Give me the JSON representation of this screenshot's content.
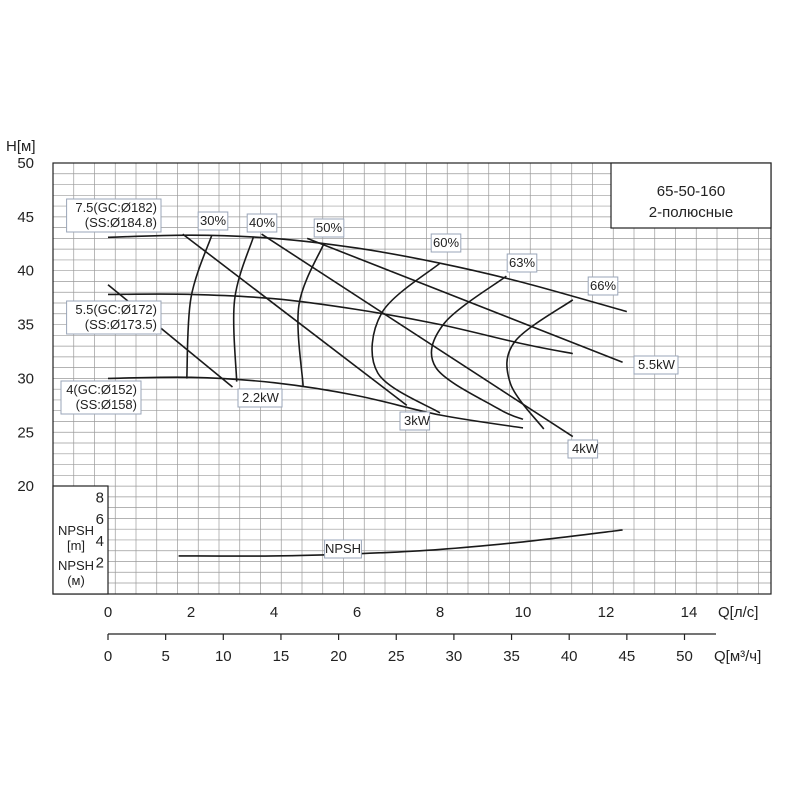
{
  "chart_data": {
    "type": "line",
    "title_box": {
      "model": "65-50-160",
      "subtitle": "2-полюсные"
    },
    "y_axis_label": "H[м]",
    "y_ticks": [
      "50",
      "45",
      "40",
      "35",
      "30",
      "25",
      "20"
    ],
    "npsh_axis": {
      "label_en": "NPSH\n[m]",
      "label_ru": "NPSH\n(м)",
      "ticks": [
        "8",
        "6",
        "4",
        "2"
      ]
    },
    "x_axis_ls": {
      "label": "Q[л/с]",
      "ticks": [
        "0",
        "2",
        "4",
        "6",
        "8",
        "10",
        "12",
        "14"
      ]
    },
    "x_axis_m3h": {
      "label": "Q[м³/ч]",
      "ticks": [
        "0",
        "5",
        "10",
        "15",
        "20",
        "25",
        "30",
        "35",
        "40",
        "45",
        "50"
      ]
    },
    "xlim_ls": [
      -1.3,
      16.3
    ],
    "ylim_H": [
      20,
      50
    ],
    "head_curves": [
      {
        "label": "7.5(GC:Ø182)\n(SS:Ø184.8)",
        "x": [
          0,
          2,
          4,
          6,
          8,
          10,
          12.5
        ],
        "y": [
          43.1,
          43.3,
          43.0,
          42.1,
          40.7,
          38.9,
          36.2
        ]
      },
      {
        "label": "5.5(GC:Ø172)\n(SS:Ø173.5)",
        "x": [
          0,
          2,
          4,
          6,
          8,
          10,
          11.2
        ],
        "y": [
          37.8,
          37.8,
          37.4,
          36.4,
          35.0,
          33.2,
          32.3
        ]
      },
      {
        "label": "4(GC:Ø152)\n(SS:Ø158)",
        "x": [
          0,
          2,
          4,
          6,
          8,
          10
        ],
        "y": [
          30.0,
          30.1,
          29.6,
          28.4,
          26.6,
          25.4
        ]
      }
    ],
    "power_lines": [
      {
        "label": "2.2kW",
        "x": [
          0,
          3.0
        ],
        "y": [
          38.7,
          29.2
        ]
      },
      {
        "label": "3kW",
        "x": [
          1.8,
          7.2
        ],
        "y": [
          43.4,
          27.5
        ]
      },
      {
        "label": "4kW",
        "x": [
          3.7,
          11.2
        ],
        "y": [
          43.4,
          24.6
        ]
      },
      {
        "label": "5.5kW",
        "x": [
          4.8,
          12.4
        ],
        "y": [
          43.0,
          31.5
        ]
      }
    ],
    "efficiency_curves": [
      {
        "label": "30%",
        "x": [
          2.5,
          2.0,
          1.9
        ],
        "y": [
          43.3,
          37.5,
          30.0
        ]
      },
      {
        "label": "40%",
        "x": [
          3.5,
          3.05,
          3.1
        ],
        "y": [
          43.1,
          37.3,
          29.7
        ]
      },
      {
        "label": "50%",
        "x": [
          5.2,
          4.6,
          4.7
        ],
        "y": [
          42.5,
          36.8,
          29.3
        ]
      },
      {
        "label": "60%",
        "x": [
          8.0,
          6.6,
          6.5,
          8.0
        ],
        "y": [
          40.7,
          36.1,
          30.5,
          26.8
        ]
      },
      {
        "label": "63%",
        "x": [
          9.6,
          8.1,
          7.9,
          9.4,
          10.0
        ],
        "y": [
          39.5,
          35.1,
          31.0,
          27.2,
          26.2
        ]
      },
      {
        "label": "66%",
        "x": [
          11.2,
          9.8,
          9.7,
          10.5
        ],
        "y": [
          37.3,
          33.4,
          29.5,
          25.3
        ]
      }
    ],
    "npsh_curve": {
      "label": "NPSH",
      "x": [
        1.7,
        4,
        6,
        8,
        10,
        12.4
      ],
      "y": [
        2.6,
        2.6,
        2.8,
        3.2,
        3.9,
        5.0
      ]
    }
  }
}
